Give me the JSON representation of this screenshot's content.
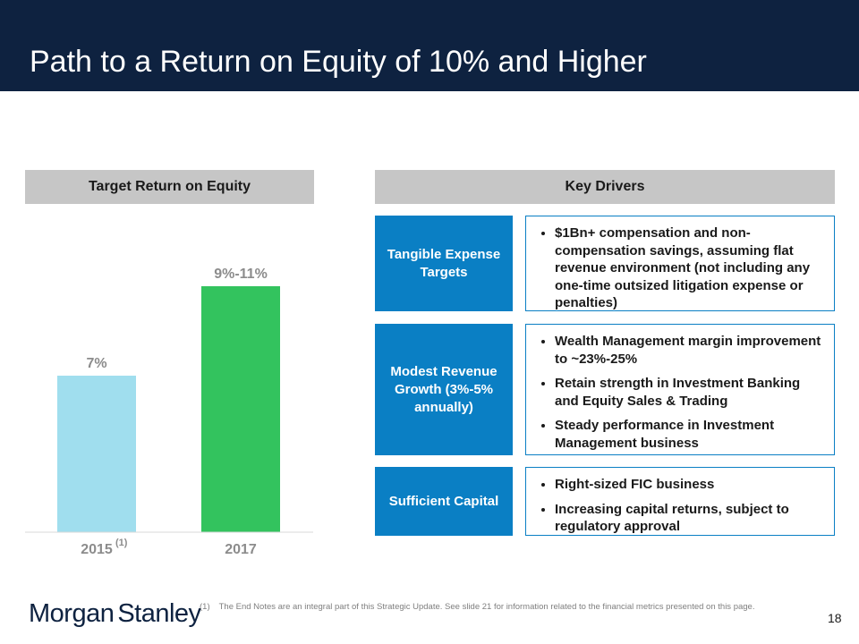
{
  "header": {
    "title": "Path to a Return on Equity of 10% and Higher"
  },
  "left_section": {
    "heading": "Target Return on Equity"
  },
  "right_section": {
    "heading": "Key Drivers"
  },
  "chart_data": {
    "type": "bar",
    "title": "Target Return on Equity",
    "categories": [
      "2015",
      "2017"
    ],
    "category_superscripts": [
      "(1)",
      ""
    ],
    "values": [
      7,
      10
    ],
    "value_ranges": [
      null,
      [
        9,
        11
      ]
    ],
    "data_labels": [
      "7%",
      "9%-11%"
    ],
    "colors": [
      "#a0deee",
      "#33c35e"
    ],
    "ylim": [
      0,
      12
    ],
    "xlabel": "",
    "ylabel": "",
    "grid": false
  },
  "drivers": [
    {
      "label": "Tangible Expense Targets",
      "bullets": [
        "$1Bn+ compensation and non-compensation savings, assuming flat revenue environment (not including any one-time outsized litigation expense or penalties)"
      ]
    },
    {
      "label": "Modest Revenue Growth (3%-5% annually)",
      "bullets": [
        "Wealth Management margin improvement to ~23%-25%",
        "Retain strength in Investment Banking and Equity Sales & Trading",
        "Steady performance in Investment Management business"
      ]
    },
    {
      "label": "Sufficient Capital",
      "bullets": [
        "Right-sized FIC business",
        "Increasing capital returns, subject to regulatory approval"
      ]
    }
  ],
  "footer": {
    "logo_word1": "Morgan",
    "logo_word2": "Stanley",
    "footnote_number": "(1)",
    "footnote_text": "The End Notes are an integral part of this Strategic Update. See slide 21 for information related to the financial metrics presented on this page.",
    "page_number": "18"
  },
  "colors": {
    "header_bg": "#0e2240",
    "driver_blue": "#0a7fc4",
    "section_gray": "#c6c6c6"
  }
}
